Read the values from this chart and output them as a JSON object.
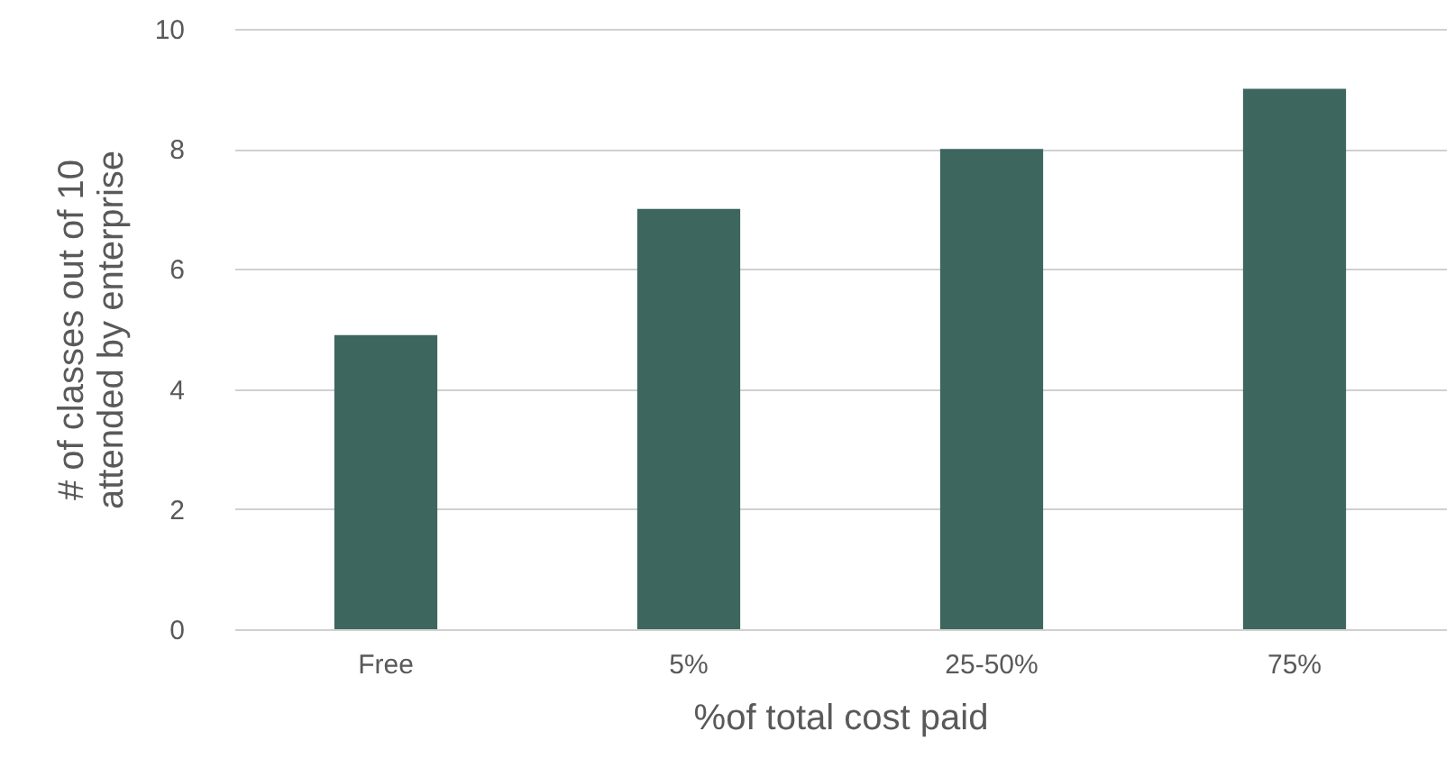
{
  "chart_data": {
    "type": "bar",
    "xlabel": "%of total cost paid",
    "ylabel": "# of classes out of 10\nattended by enterprise",
    "categories": [
      "Free",
      "5%",
      "25-50%",
      "75%"
    ],
    "values": [
      4.9,
      7,
      8,
      9
    ],
    "color": "#3d665f",
    "ylim": [
      0,
      10
    ],
    "yticks": [
      0,
      2,
      4,
      6,
      8,
      10
    ],
    "grid": "y"
  }
}
